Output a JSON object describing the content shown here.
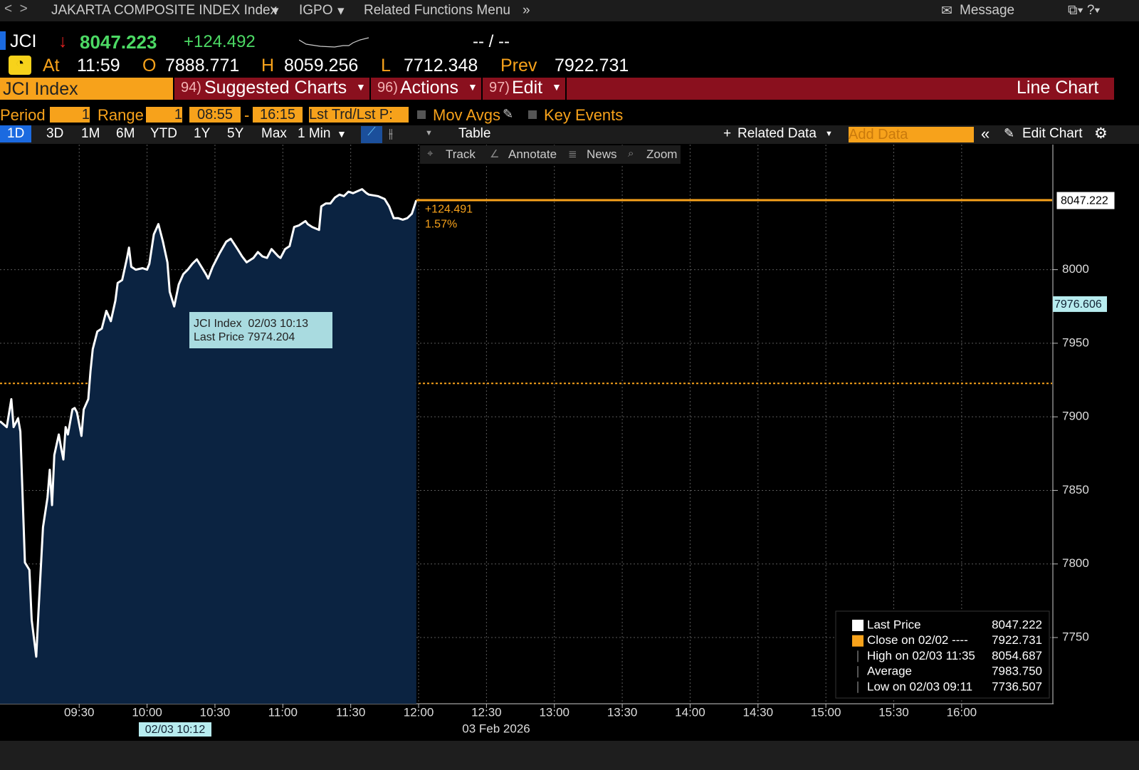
{
  "nav": {
    "security": "JAKARTA COMPOSITE INDEX Index",
    "ticker_menu": "IGPO",
    "related": "Related Functions Menu",
    "message": "Message"
  },
  "quote": {
    "ticker": "JCI",
    "last": "8047.223",
    "change": "+124.492",
    "bid_ask": "-- / --",
    "at_label": "At",
    "time": "11:59",
    "open_label": "O",
    "open": "7888.771",
    "high_label": "H",
    "high": "8059.256",
    "low_label": "L",
    "low": "7712.348",
    "prev_label": "Prev",
    "prev": "7922.731"
  },
  "menu": {
    "security": "JCI Index",
    "items": [
      {
        "num": "94)",
        "label": "Suggested Charts"
      },
      {
        "num": "96)",
        "label": "Actions"
      },
      {
        "num": "97)",
        "label": "Edit"
      }
    ],
    "chart_type": "Line Chart"
  },
  "settings": {
    "period_label": "Period",
    "period": "1",
    "range_label": "Range",
    "range": "1",
    "start": "08:55",
    "dash": "-",
    "end": "16:15",
    "price_type": "Lst Trd/Lst P:",
    "mov_avgs": "Mov Avgs",
    "key_events": "Key Events"
  },
  "tabs": {
    "ranges": [
      "1D",
      "3D",
      "1M",
      "6M",
      "YTD",
      "1Y",
      "5Y",
      "Max"
    ],
    "interval": "1 Min",
    "table": "Table",
    "related_data": "Related Data",
    "add_data": "Add Data",
    "edit_chart": "Edit Chart"
  },
  "toolbar": [
    "Track",
    "Annotate",
    "News",
    "Zoom"
  ],
  "chart_data": {
    "type": "line",
    "x": [
      "08:55",
      "08:58",
      "09:00",
      "09:01",
      "09:03",
      "09:04",
      "09:06",
      "09:08",
      "09:09",
      "09:11",
      "09:12",
      "09:13",
      "09:14",
      "09:16",
      "09:17",
      "09:18",
      "09:19",
      "09:21",
      "09:22",
      "09:23",
      "09:24",
      "09:25",
      "09:27",
      "09:28",
      "09:29",
      "09:31",
      "09:32",
      "09:34",
      "09:35",
      "09:36",
      "09:38",
      "09:40",
      "09:42",
      "09:44",
      "09:46",
      "09:47",
      "09:49",
      "09:51",
      "09:52",
      "09:53",
      "09:55",
      "09:58",
      "10:00",
      "10:01",
      "10:03",
      "10:05",
      "10:07",
      "10:09",
      "10:10",
      "10:12",
      "10:14",
      "10:16",
      "10:18",
      "10:20",
      "10:22",
      "10:24",
      "10:26",
      "10:27",
      "10:29",
      "10:32",
      "10:35",
      "10:37",
      "10:40",
      "10:42",
      "10:44",
      "10:47",
      "10:49",
      "10:51",
      "10:53",
      "10:55",
      "10:58",
      "10:59",
      "11:01",
      "11:03",
      "11:05",
      "11:07",
      "11:10",
      "11:11",
      "11:13",
      "11:16",
      "11:17",
      "11:19",
      "11:21",
      "11:23",
      "11:25",
      "11:27",
      "11:29",
      "11:31",
      "11:35",
      "11:37",
      "11:38",
      "11:42",
      "11:45",
      "11:47",
      "11:49",
      "11:51",
      "11:53",
      "11:55",
      "11:57",
      "11:59"
    ],
    "series": [
      {
        "name": "Last Price",
        "color": "#ffffff",
        "values": [
          7897,
          7893,
          7912,
          7893,
          7899,
          7890,
          7801,
          7796,
          7762,
          7737,
          7767,
          7796,
          7825,
          7845,
          7864,
          7840,
          7874,
          7888,
          7879,
          7871,
          7893,
          7888,
          7905,
          7906,
          7903,
          7887,
          7905,
          7912,
          7931,
          7946,
          7958,
          7960,
          7972,
          7965,
          7979,
          7991,
          7993,
          8007,
          8015,
          8002,
          8000,
          8001,
          8000,
          8004,
          8024,
          8031,
          8019,
          8005,
          7985,
          7975,
          7990,
          7997,
          8000,
          8004,
          8007,
          8002,
          7997,
          7994,
          8002,
          8011,
          8019,
          8021,
          8014,
          8009,
          8005,
          8008,
          8012,
          8009,
          8008,
          8014,
          8009,
          8008,
          8014,
          8016,
          8029,
          8030,
          8033,
          8031,
          8029,
          8027,
          8043,
          8045,
          8045,
          8049,
          8051,
          8050,
          8053,
          8052,
          8054.7,
          8052,
          8051,
          8050,
          8048,
          8043,
          8035,
          8035,
          8034,
          8035,
          8038,
          8047.2
        ]
      }
    ],
    "fill_color": "#0b2341",
    "xlim": [
      "08:55",
      "16:40"
    ],
    "xticks": [
      "09:30",
      "10:00",
      "10:30",
      "11:00",
      "11:30",
      "12:00",
      "12:30",
      "13:00",
      "13:30",
      "14:00",
      "14:30",
      "15:00",
      "15:30",
      "16:00"
    ],
    "ylim": [
      7705,
      8085
    ],
    "yticks": [
      7750,
      7800,
      7850,
      7900,
      7950,
      8000
    ],
    "grid": true,
    "last_price": {
      "value": 8047.222,
      "color": "#f7a21b",
      "change_label": "+124.491",
      "pct_label": "1.57%"
    },
    "prev_close": {
      "value": 7922.731,
      "color": "#f7a21b"
    },
    "cursor": {
      "value": 7976.606,
      "x_label": "02/03 10:12"
    },
    "tooltip": {
      "line1": "JCI Index  02/03 10:13",
      "line2": "Last Price 7974.204"
    },
    "date_label": "03 Feb 2026",
    "legend": [
      {
        "label": "Last Price",
        "value": "8047.222"
      },
      {
        "label": "Close on 02/02 ----",
        "value": "7922.731"
      },
      {
        "label": "High on 02/03 11:35",
        "value": "8054.687"
      },
      {
        "label": "Average",
        "value": "7983.750"
      },
      {
        "label": "Low on 02/03 09:11",
        "value": "7736.507"
      }
    ]
  }
}
